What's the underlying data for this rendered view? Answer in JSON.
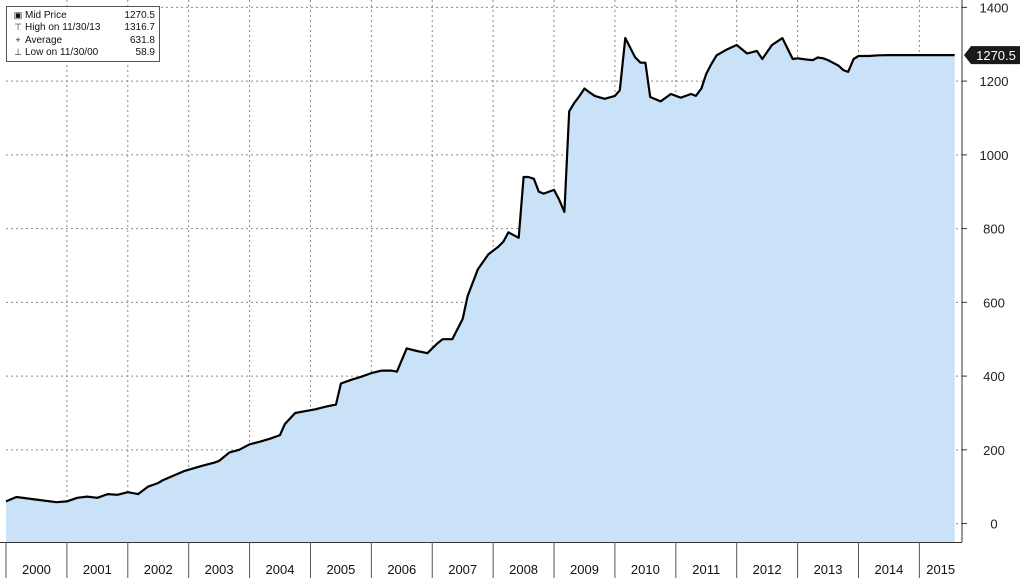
{
  "legend": {
    "rows": [
      {
        "icon": "square-icon",
        "label": "Mid Price",
        "value": "1270.5"
      },
      {
        "icon": "high-marker-icon",
        "label": "High on 11/30/13",
        "value": "1316.7"
      },
      {
        "icon": "average-marker-icon",
        "label": "Average",
        "value": "631.8"
      },
      {
        "icon": "low-marker-icon",
        "label": "Low on 11/30/00",
        "value": "58.9"
      }
    ]
  },
  "last_price_tag": "1270.5",
  "colors": {
    "area_fill": "#c9e2f8",
    "line": "#000000",
    "grid": "#8a8a8a",
    "price_tag_bg": "#1a1a1a",
    "price_tag_text": "#ffffff"
  },
  "chart_data": {
    "type": "area",
    "title": "",
    "xlabel": "",
    "ylabel": "",
    "ylim": [
      -50,
      1420
    ],
    "yticks": [
      0,
      200,
      400,
      600,
      800,
      1000,
      1200,
      1400
    ],
    "xticks": [
      "2000",
      "2001",
      "2002",
      "2003",
      "2004",
      "2005",
      "2006",
      "2007",
      "2008",
      "2009",
      "2010",
      "2011",
      "2012",
      "2013",
      "2014",
      "2015"
    ],
    "xlim": [
      2000.0,
      2015.7
    ],
    "grid": true,
    "legend_position": "top-left",
    "series": [
      {
        "name": "Mid Price",
        "x": [
          2000.0,
          2000.17,
          2000.5,
          2000.83,
          2001.0,
          2001.17,
          2001.33,
          2001.5,
          2001.67,
          2001.83,
          2002.0,
          2002.17,
          2002.33,
          2002.5,
          2002.58,
          2002.75,
          2002.92,
          2003.08,
          2003.25,
          2003.42,
          2003.5,
          2003.67,
          2003.83,
          2004.0,
          2004.17,
          2004.33,
          2004.5,
          2004.58,
          2004.75,
          2004.92,
          2005.08,
          2005.25,
          2005.42,
          2005.5,
          2005.67,
          2005.83,
          2006.0,
          2006.17,
          2006.33,
          2006.42,
          2006.58,
          2006.75,
          2006.92,
          2007.08,
          2007.17,
          2007.33,
          2007.5,
          2007.58,
          2007.75,
          2007.92,
          2008.08,
          2008.17,
          2008.25,
          2008.42,
          2008.5,
          2008.58,
          2008.67,
          2008.75,
          2008.83,
          2009.0,
          2009.08,
          2009.17,
          2009.25,
          2009.33,
          2009.42,
          2009.5,
          2009.58,
          2009.67,
          2009.83,
          2010.0,
          2010.08,
          2010.17,
          2010.33,
          2010.42,
          2010.5,
          2010.58,
          2010.75,
          2010.92,
          2011.08,
          2011.25,
          2011.33,
          2011.42,
          2011.5,
          2011.58,
          2011.67,
          2011.83,
          2012.0,
          2012.17,
          2012.33,
          2012.42,
          2012.58,
          2012.75,
          2012.92,
          2013.0,
          2013.08,
          2013.17,
          2013.25,
          2013.33,
          2013.42,
          2013.5,
          2013.58,
          2013.67,
          2013.75,
          2013.83,
          2013.92,
          2014.0,
          2014.17,
          2014.33,
          2014.5,
          2014.67,
          2014.83,
          2015.0,
          2015.17,
          2015.33,
          2015.5,
          2015.58
        ],
        "values": [
          60,
          72,
          65,
          58,
          60,
          70,
          73,
          70,
          80,
          78,
          85,
          80,
          100,
          110,
          118,
          130,
          142,
          150,
          158,
          165,
          170,
          193,
          200,
          215,
          222,
          230,
          240,
          270,
          300,
          305,
          310,
          317,
          323,
          380,
          390,
          398,
          408,
          415,
          415,
          412,
          475,
          468,
          462,
          488,
          500,
          500,
          555,
          617,
          690,
          730,
          750,
          765,
          790,
          775,
          940,
          940,
          935,
          900,
          895,
          905,
          880,
          845,
          1118,
          1140,
          1160,
          1180,
          1170,
          1160,
          1152,
          1160,
          1175,
          1317,
          1265,
          1250,
          1250,
          1157,
          1145,
          1165,
          1155,
          1165,
          1160,
          1180,
          1220,
          1245,
          1270,
          1285,
          1298,
          1275,
          1282,
          1260,
          1298,
          1316.7,
          1260,
          1262,
          1260,
          1258,
          1257,
          1264,
          1262,
          1257,
          1250,
          1242,
          1230,
          1225,
          1260,
          1268,
          1268,
          1270,
          1270.5,
          1270.5,
          1270.5,
          1270.5,
          1270.5,
          1270.5,
          1270.5,
          1270.5
        ]
      }
    ]
  }
}
